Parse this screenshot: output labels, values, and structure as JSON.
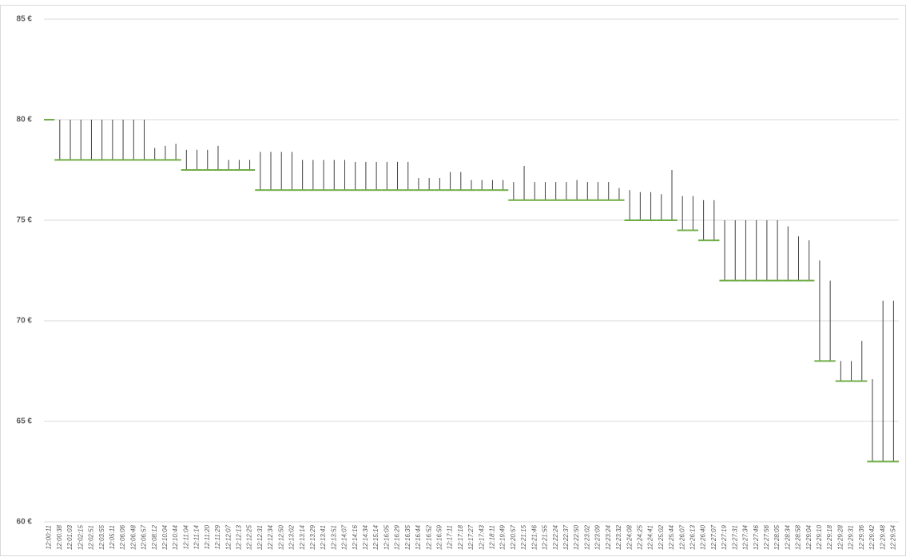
{
  "chart_data": {
    "type": "stock",
    "categories": [
      "12:00:11",
      "12:00:38",
      "12:01:03",
      "12:02:15",
      "12:02:51",
      "12:03:55",
      "12:05:11",
      "12:06:06",
      "12:06:48",
      "12:06:57",
      "12:08:12",
      "12:10:04",
      "12:10:44",
      "12:11:04",
      "12:11:14",
      "12:11:20",
      "12:11:29",
      "12:12:07",
      "12:12:13",
      "12:12:25",
      "12:12:31",
      "12:12:34",
      "12:12:50",
      "12:13:02",
      "12:13:14",
      "12:13:29",
      "12:13:41",
      "12:13:51",
      "12:14:07",
      "12:14:16",
      "12:14:34",
      "12:15:14",
      "12:16:05",
      "12:16:29",
      "12:16:35",
      "12:16:44",
      "12:16:52",
      "12:16:59",
      "12:17:11",
      "12:17:18",
      "12:17:27",
      "12:17:43",
      "12:18:11",
      "12:19:49",
      "12:20:57",
      "12:21:15",
      "12:21:46",
      "12:21:55",
      "12:22:24",
      "12:22:37",
      "12:22:50",
      "12:23:02",
      "12:23:09",
      "12:23:24",
      "12:23:32",
      "12:24:08",
      "12:24:25",
      "12:24:41",
      "12:25:02",
      "12:25:44",
      "12:26:07",
      "12:26:13",
      "12:26:40",
      "12:27:07",
      "12:27:19",
      "12:27:31",
      "12:27:34",
      "12:27:46",
      "12:27:56",
      "12:28:05",
      "12:28:34",
      "12:28:58",
      "12:29:04",
      "12:29:10",
      "12:29:18",
      "12:29:28",
      "12:29:31",
      "12:29:36",
      "12:29:42",
      "12:29:48",
      "12:29:54"
    ],
    "series": [
      {
        "color": "#404040",
        "values": [
          80,
          80,
          80,
          80,
          80,
          80,
          80,
          80,
          80,
          80,
          78.6,
          78.7,
          78.8,
          78.5,
          78.5,
          78.5,
          78.7,
          78,
          78,
          78,
          78.4,
          78.4,
          78.4,
          78.4,
          78,
          78,
          78,
          78,
          78,
          77.9,
          77.9,
          77.9,
          77.9,
          77.9,
          77.9,
          77.1,
          77.1,
          77.1,
          77.4,
          77.4,
          77,
          77,
          77,
          77,
          76.9,
          77.7,
          76.9,
          76.9,
          76.9,
          76.9,
          77,
          76.9,
          76.9,
          76.9,
          76.6,
          76.5,
          76.4,
          76.4,
          76.3,
          77.5,
          76.2,
          76.2,
          76,
          76,
          75,
          75,
          75,
          75,
          75,
          75,
          74.7,
          74.2,
          74,
          73,
          72,
          68,
          68,
          69,
          67.1,
          71,
          71
        ]
      },
      {
        "color": "#70ad47",
        "values": [
          80,
          78,
          78,
          78,
          78,
          78,
          78,
          78,
          78,
          78,
          78,
          78,
          78,
          77.5,
          77.5,
          77.5,
          77.5,
          77.5,
          77.5,
          77.5,
          76.5,
          76.5,
          76.5,
          76.5,
          76.5,
          76.5,
          76.5,
          76.5,
          76.5,
          76.5,
          76.5,
          76.5,
          76.5,
          76.5,
          76.5,
          76.5,
          76.5,
          76.5,
          76.5,
          76.5,
          76.5,
          76.5,
          76.5,
          76.5,
          76,
          76,
          76,
          76,
          76,
          76,
          76,
          76,
          76,
          76,
          76,
          75,
          75,
          75,
          75,
          75,
          74.5,
          74.5,
          74,
          74,
          72,
          72,
          72,
          72,
          72,
          72,
          72,
          72,
          72,
          68,
          68,
          67,
          67,
          67,
          63,
          63,
          63
        ]
      }
    ],
    "ylim": [
      60,
      85
    ],
    "yticks": [
      {
        "value": 60,
        "label": "60 €"
      },
      {
        "value": 65,
        "label": "65 €"
      },
      {
        "value": 70,
        "label": "70 €"
      },
      {
        "value": 75,
        "label": "75 €"
      },
      {
        "value": 80,
        "label": "80 €"
      },
      {
        "value": 85,
        "label": "85 €"
      }
    ],
    "grid": true
  }
}
